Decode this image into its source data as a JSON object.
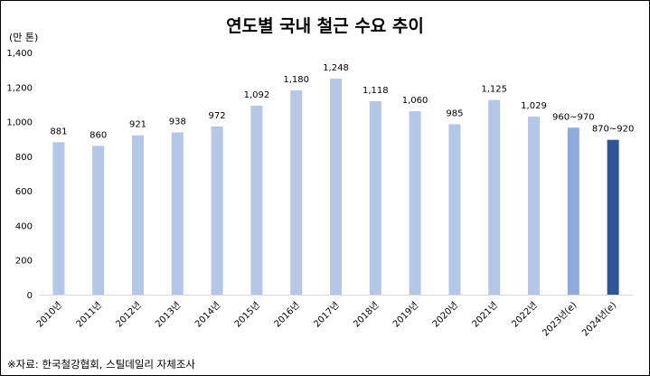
{
  "colors": {
    "bar": "#b4c7e7",
    "bar_estimate_2023": "#8faadc",
    "bar_estimate_2024": "#2f5597",
    "axis": "#d9d9d9"
  },
  "chart_data": {
    "type": "bar",
    "title": "연도별 국내 철근 수요 추이",
    "unit": "(만 톤)",
    "categories": [
      "2010년",
      "2011년",
      "2012년",
      "2013년",
      "2014년",
      "2015년",
      "2016년",
      "2017년",
      "2018년",
      "2019년",
      "2020년",
      "2021년",
      "2022년",
      "2023년(e)",
      "2024년(e)"
    ],
    "values": [
      881,
      860,
      921,
      938,
      972,
      1092,
      1180,
      1248,
      1118,
      1060,
      985,
      1125,
      1029,
      965,
      895
    ],
    "data_labels": [
      "881",
      "860",
      "921",
      "938",
      "972",
      "1,092",
      "1,180",
      "1,248",
      "1,118",
      "1,060",
      "985",
      "1,125",
      "1,029",
      "960~970",
      "870~920"
    ],
    "ylim": [
      0,
      1400
    ],
    "yticks": [
      "0",
      "200",
      "400",
      "600",
      "800",
      "1,000",
      "1,200",
      "1,400"
    ],
    "grid": false,
    "legend": "none"
  },
  "source": "※자료: 한국철강협회, 스틸데일리 자체조사"
}
